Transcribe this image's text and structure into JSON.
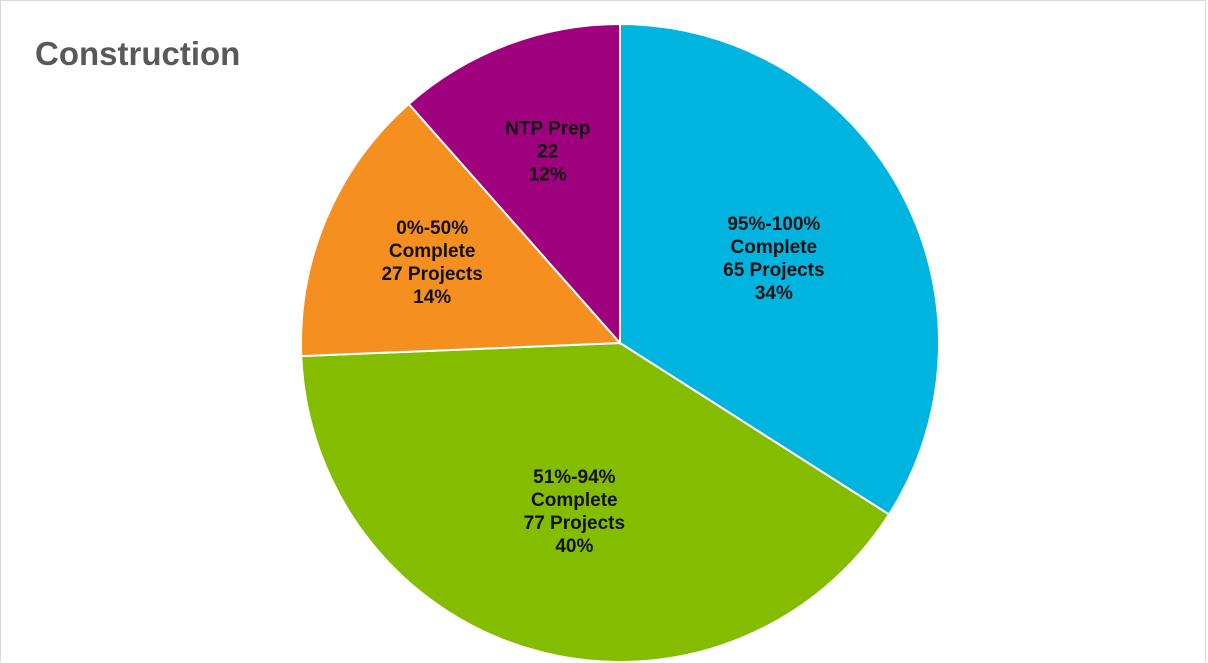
{
  "chart_data": {
    "type": "pie",
    "title": "Construction",
    "categories": [
      "95%-100% Complete",
      "51%-94% Complete",
      "0%-50% Complete",
      "NTP Prep"
    ],
    "values": [
      65,
      77,
      27,
      22
    ],
    "value_labels": [
      "65 Projects",
      "77 Projects",
      "27 Projects",
      "22"
    ],
    "percent_labels": [
      "34%",
      "40%",
      "14%",
      "12%"
    ],
    "colors": [
      "#00b4e0",
      "#84bd00",
      "#f58f20",
      "#9e007e"
    ]
  }
}
